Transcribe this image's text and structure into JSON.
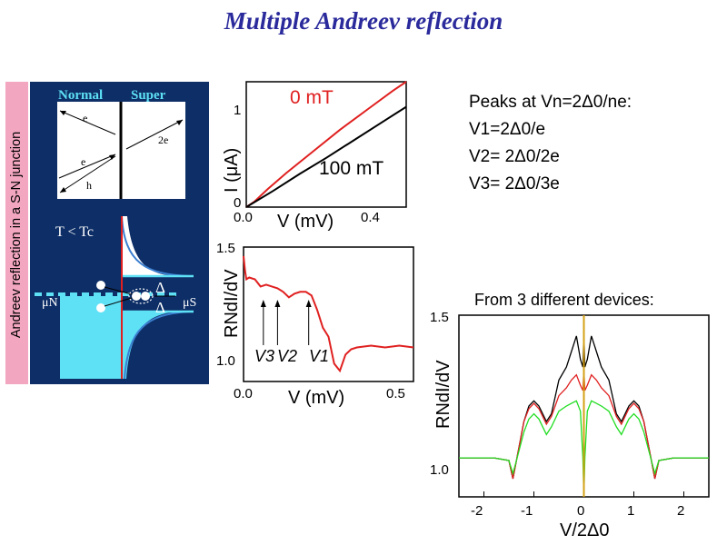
{
  "title": "Multiple Andreev reflection",
  "side_label": "Andreev reflection in a S-N junction",
  "schematic": {
    "normal_label": "Normal",
    "super_label": "Super",
    "e1": "e",
    "e2": "e",
    "h": "h",
    "two_e": "2e",
    "temp_label": "T < Tc",
    "mu_n": "μN",
    "mu_s": "μS",
    "delta1": "Δ",
    "delta2": "Δ",
    "colors": {
      "bg": "#0d2e66",
      "cyan": "#5ee0f5",
      "red": "#e02020"
    }
  },
  "peaks": {
    "heading": "Peaks at Vn=2Δ0/ne:",
    "v1": "V1=2Δ0/e",
    "v2": "V2= 2Δ0/2e",
    "v3": "V3= 2Δ0/3e"
  },
  "devices_title": "From 3 different devices:",
  "chart_data": [
    {
      "type": "line",
      "ylabel": "I (μA)",
      "xlabel": "V (mV)",
      "xlim": [
        0,
        0.6
      ],
      "ylim": [
        0,
        1.4
      ],
      "xticks": [
        "0.0",
        "0.4"
      ],
      "yticks": [
        "0",
        "1"
      ],
      "series": [
        {
          "name": "0 mT",
          "color": "#e02020",
          "x": [
            0,
            0.03,
            0.08,
            0.15,
            0.25,
            0.35,
            0.45,
            0.55,
            0.6
          ],
          "y": [
            0,
            0.06,
            0.2,
            0.38,
            0.62,
            0.86,
            1.08,
            1.3,
            1.4
          ]
        },
        {
          "name": "100 mT",
          "color": "#000000",
          "x": [
            0,
            0.1,
            0.2,
            0.3,
            0.4,
            0.5,
            0.6
          ],
          "y": [
            0,
            0.18,
            0.37,
            0.55,
            0.74,
            0.93,
            1.12
          ]
        }
      ]
    },
    {
      "type": "line",
      "ylabel": "RNdI/dV",
      "xlabel": "V (mV)",
      "xlim": [
        0,
        0.6
      ],
      "ylim": [
        0.8,
        1.55
      ],
      "xticks": [
        "0.0",
        "0.5"
      ],
      "yticks": [
        "1.0",
        "1.5"
      ],
      "annotations": [
        "V3",
        "V2",
        "V1"
      ],
      "annotation_x": [
        0.07,
        0.12,
        0.23
      ],
      "series": [
        {
          "name": "",
          "color": "#e02020",
          "x": [
            0,
            0.005,
            0.01,
            0.02,
            0.04,
            0.06,
            0.08,
            0.1,
            0.12,
            0.14,
            0.16,
            0.18,
            0.2,
            0.22,
            0.24,
            0.26,
            0.28,
            0.3,
            0.32,
            0.34,
            0.36,
            0.38,
            0.4,
            0.45,
            0.5,
            0.55,
            0.6
          ],
          "y": [
            1.5,
            1.42,
            1.37,
            1.38,
            1.37,
            1.33,
            1.34,
            1.33,
            1.32,
            1.3,
            1.27,
            1.29,
            1.3,
            1.3,
            1.28,
            1.2,
            1.1,
            1.05,
            0.9,
            0.86,
            0.95,
            0.98,
            0.99,
            1.0,
            0.99,
            1.0,
            0.99
          ]
        }
      ]
    },
    {
      "type": "line",
      "title": "From 3 different devices:",
      "ylabel": "RNdI/dV",
      "xlabel": "V/2Δ0",
      "xlim": [
        -2.5,
        2.5
      ],
      "ylim": [
        0.85,
        1.55
      ],
      "xticks": [
        "-2",
        "-1",
        "0",
        "1",
        "2"
      ],
      "yticks": [
        "1.0",
        "1.5"
      ],
      "series": [
        {
          "name": "",
          "color": "#000000",
          "x": [
            -2.5,
            -1.8,
            -1.5,
            -1.42,
            -1.35,
            -1.2,
            -1.1,
            -1.0,
            -0.9,
            -0.75,
            -0.65,
            -0.5,
            -0.35,
            -0.25,
            -0.15,
            -0.07,
            -0.02,
            0,
            0.02,
            0.07,
            0.15,
            0.25,
            0.35,
            0.5,
            0.65,
            0.75,
            0.9,
            1.0,
            1.1,
            1.2,
            1.35,
            1.42,
            1.5,
            1.8,
            2.5
          ],
          "y": [
            1.0,
            1.0,
            0.99,
            0.92,
            0.99,
            1.14,
            1.2,
            1.22,
            1.2,
            1.14,
            1.17,
            1.3,
            1.35,
            1.41,
            1.47,
            1.38,
            1.35,
            1.48,
            1.35,
            1.38,
            1.47,
            1.41,
            1.35,
            1.3,
            1.17,
            1.14,
            1.2,
            1.22,
            1.2,
            1.14,
            0.99,
            0.92,
            0.99,
            1.0,
            1.0
          ]
        },
        {
          "name": "",
          "color": "#e02020",
          "x": [
            -2.5,
            -1.8,
            -1.5,
            -1.42,
            -1.35,
            -1.2,
            -1.1,
            -1.0,
            -0.9,
            -0.75,
            -0.65,
            -0.5,
            -0.35,
            -0.25,
            -0.15,
            -0.07,
            -0.02,
            0,
            0.02,
            0.07,
            0.15,
            0.25,
            0.35,
            0.5,
            0.65,
            0.75,
            0.9,
            1.0,
            1.1,
            1.2,
            1.35,
            1.42,
            1.5,
            1.8,
            2.5
          ],
          "y": [
            1.0,
            1.0,
            0.99,
            0.92,
            0.99,
            1.14,
            1.19,
            1.21,
            1.19,
            1.13,
            1.16,
            1.24,
            1.27,
            1.3,
            1.32,
            1.28,
            1.26,
            1.34,
            1.26,
            1.28,
            1.32,
            1.3,
            1.27,
            1.24,
            1.16,
            1.13,
            1.19,
            1.21,
            1.19,
            1.14,
            0.99,
            0.92,
            0.99,
            1.0,
            1.0
          ]
        },
        {
          "name": "",
          "color": "#22dd22",
          "x": [
            -2.5,
            -1.8,
            -1.5,
            -1.42,
            -1.35,
            -1.2,
            -1.1,
            -1.0,
            -0.9,
            -0.75,
            -0.65,
            -0.5,
            -0.35,
            -0.25,
            -0.15,
            -0.07,
            -0.02,
            0,
            0.02,
            0.07,
            0.15,
            0.25,
            0.35,
            0.5,
            0.65,
            0.75,
            0.9,
            1.0,
            1.1,
            1.2,
            1.35,
            1.42,
            1.5,
            1.8,
            2.5
          ],
          "y": [
            1.0,
            1.0,
            0.99,
            0.94,
            0.99,
            1.1,
            1.15,
            1.17,
            1.15,
            1.09,
            1.12,
            1.18,
            1.2,
            1.21,
            1.22,
            1.18,
            1.0,
            0.85,
            1.0,
            1.18,
            1.22,
            1.21,
            1.2,
            1.18,
            1.12,
            1.09,
            1.15,
            1.17,
            1.15,
            1.1,
            0.99,
            0.94,
            0.99,
            1.0,
            1.0
          ]
        }
      ]
    }
  ]
}
